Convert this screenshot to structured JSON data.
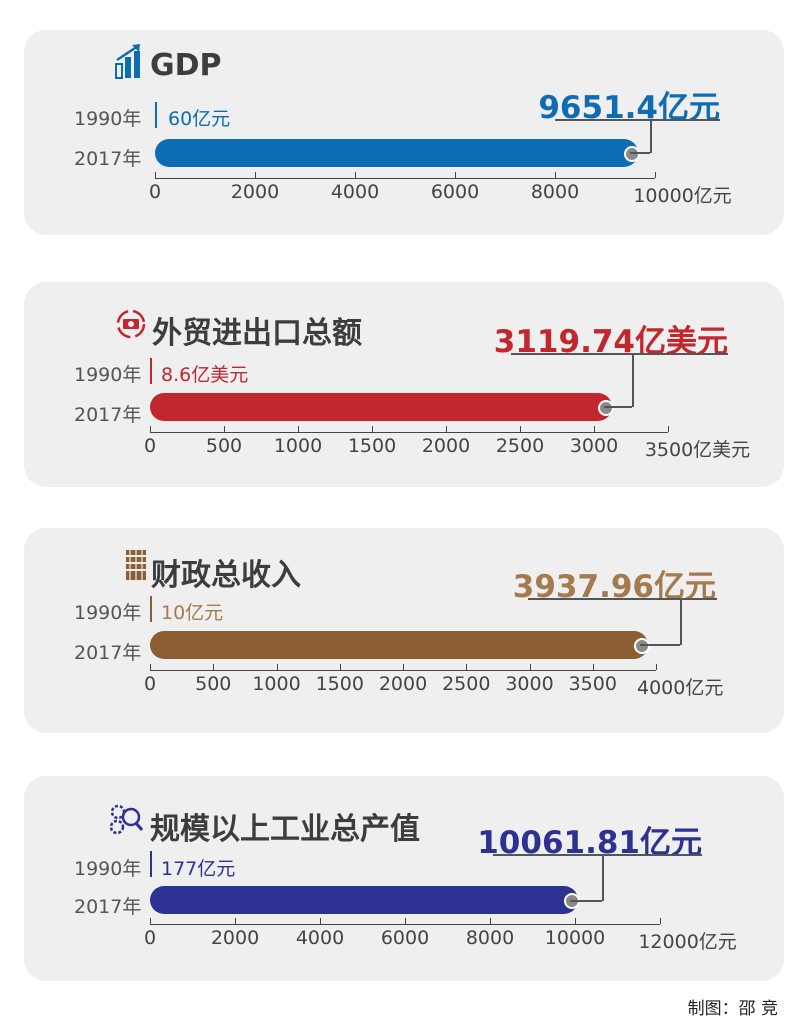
{
  "chart_data": [
    {
      "type": "bar",
      "title": "GDP",
      "icon": "growth-chart-icon",
      "color": "#0d6cb3",
      "categories": [
        "1990年",
        "2017年"
      ],
      "values": [
        60,
        9651.4
      ],
      "labels": [
        "60亿元",
        "9651.4亿元"
      ],
      "unit": "亿元",
      "xlim": [
        0,
        10000
      ],
      "ticks": [
        "0",
        "2000",
        "4000",
        "6000",
        "8000",
        "10000亿元"
      ],
      "tick_values": [
        0,
        2000,
        4000,
        6000,
        8000,
        10000
      ]
    },
    {
      "type": "bar",
      "title": "外贸进出口总额",
      "icon": "money-exchange-icon",
      "color": "#c1272d",
      "categories": [
        "1990年",
        "2017年"
      ],
      "values": [
        8.6,
        3119.74
      ],
      "labels": [
        "8.6亿美元",
        "3119.74亿美元"
      ],
      "unit": "亿美元",
      "xlim": [
        0,
        3500
      ],
      "ticks": [
        "0",
        "500",
        "1000",
        "1500",
        "2000",
        "2500",
        "3000",
        "3500亿美元"
      ],
      "tick_values": [
        0,
        500,
        1000,
        1500,
        2000,
        2500,
        3000,
        3500
      ]
    },
    {
      "type": "bar",
      "title": "财政总收入",
      "icon": "coin-stack-icon",
      "color": "#8b5e34",
      "label_color": "#a47a4f",
      "categories": [
        "1990年",
        "2017年"
      ],
      "values": [
        10,
        3937.96
      ],
      "labels": [
        "10亿元",
        "3937.96亿元"
      ],
      "unit": "亿元",
      "xlim": [
        0,
        4000
      ],
      "ticks": [
        "0",
        "500",
        "1000",
        "1500",
        "2000",
        "2500",
        "3000",
        "3500",
        "4000亿元"
      ],
      "tick_values": [
        0,
        500,
        1000,
        1500,
        2000,
        2500,
        3000,
        3500,
        4000
      ]
    },
    {
      "type": "bar",
      "title": "规模以上工业总产值",
      "icon": "gears-magnifier-icon",
      "color": "#2d3191",
      "categories": [
        "1990年",
        "2017年"
      ],
      "values": [
        177,
        10061.81
      ],
      "labels": [
        "177亿元",
        "10061.81亿元"
      ],
      "unit": "亿元",
      "xlim": [
        0,
        12000
      ],
      "ticks": [
        "0",
        "2000",
        "4000",
        "6000",
        "8000",
        "10000",
        "12000亿元"
      ],
      "tick_values": [
        0,
        2000,
        4000,
        6000,
        8000,
        10000,
        12000
      ]
    }
  ],
  "credit": "制图：邵 竞"
}
